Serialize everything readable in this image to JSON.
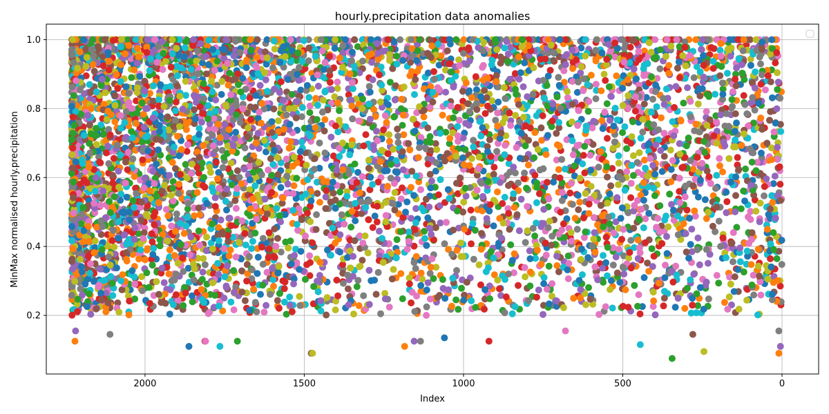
{
  "chart_data": {
    "type": "scatter",
    "title": "hourly.precipitation data anomalies",
    "xlabel": "Index",
    "ylabel": "MinMax normalised hourly.precipitation",
    "xlim": [
      2310,
      -115
    ],
    "ylim": [
      0.03,
      1.045
    ],
    "x_inverted": true,
    "x_ticks": [
      2000,
      1500,
      1000,
      500,
      0
    ],
    "y_ticks": [
      0.2,
      0.4,
      0.6,
      0.8,
      1.0
    ],
    "x_tick_labels": [
      "2000",
      "1500",
      "1000",
      "500",
      "0"
    ],
    "y_tick_labels": [
      "0.2",
      "0.4",
      "0.6",
      "0.8",
      "1.0"
    ],
    "grid": true,
    "legend": {
      "placement": "top-right",
      "entries": []
    },
    "x_range_of_points": [
      0,
      2230
    ],
    "y_range_of_points": [
      0.08,
      1.0
    ],
    "colors": [
      "#1f77b4",
      "#ff7f0e",
      "#2ca02c",
      "#d62728",
      "#9467bd",
      "#8c564b",
      "#e377c2",
      "#7f7f7f",
      "#bcbd22",
      "#17becf"
    ],
    "highlighted_points": [
      {
        "x": 2220,
        "y": 0.125
      },
      {
        "x": 2218,
        "y": 0.155
      },
      {
        "x": 2110,
        "y": 0.145
      },
      {
        "x": 1862,
        "y": 0.11
      },
      {
        "x": 1812,
        "y": 0.125
      },
      {
        "x": 1810,
        "y": 0.125
      },
      {
        "x": 1765,
        "y": 0.11
      },
      {
        "x": 1710,
        "y": 0.125
      },
      {
        "x": 1478,
        "y": 0.09
      },
      {
        "x": 1474,
        "y": 0.09
      },
      {
        "x": 1185,
        "y": 0.11
      },
      {
        "x": 1155,
        "y": 0.125
      },
      {
        "x": 1135,
        "y": 0.125
      },
      {
        "x": 1060,
        "y": 0.135
      },
      {
        "x": 920,
        "y": 0.125
      },
      {
        "x": 680,
        "y": 0.155
      },
      {
        "x": 445,
        "y": 0.115
      },
      {
        "x": 345,
        "y": 0.075
      },
      {
        "x": 280,
        "y": 0.145
      },
      {
        "x": 245,
        "y": 0.095
      },
      {
        "x": 10,
        "y": 0.09
      },
      {
        "x": 5,
        "y": 0.11
      },
      {
        "x": 10,
        "y": 0.155
      }
    ]
  }
}
